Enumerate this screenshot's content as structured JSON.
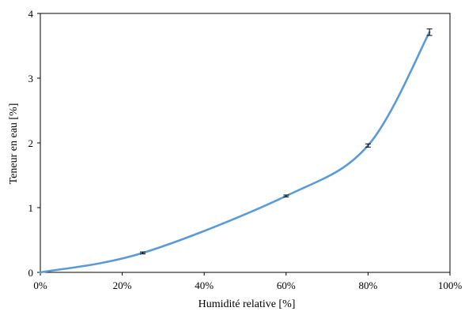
{
  "chart_data": {
    "type": "line",
    "xlabel": "Humidité relative [%]",
    "ylabel": "Teneur en eau [%]",
    "xlim": [
      0,
      100
    ],
    "ylim": [
      0,
      4
    ],
    "x_ticks": [
      0,
      20,
      40,
      60,
      80,
      100
    ],
    "x_tick_labels": [
      "0%",
      "20%",
      "40%",
      "60%",
      "80%",
      "100%"
    ],
    "y_ticks": [
      0,
      1,
      2,
      3,
      4
    ],
    "y_tick_labels": [
      "0",
      "1",
      "2",
      "3",
      "4"
    ],
    "grid": false,
    "legend": "none",
    "series": [
      {
        "x": [
          0,
          25,
          60,
          80,
          95
        ],
        "y": [
          0,
          0.3,
          1.18,
          1.96,
          3.71
        ],
        "error": [
          0,
          0.015,
          0.015,
          0.025,
          0.05
        ],
        "color": "#5B9BD5"
      }
    ]
  }
}
